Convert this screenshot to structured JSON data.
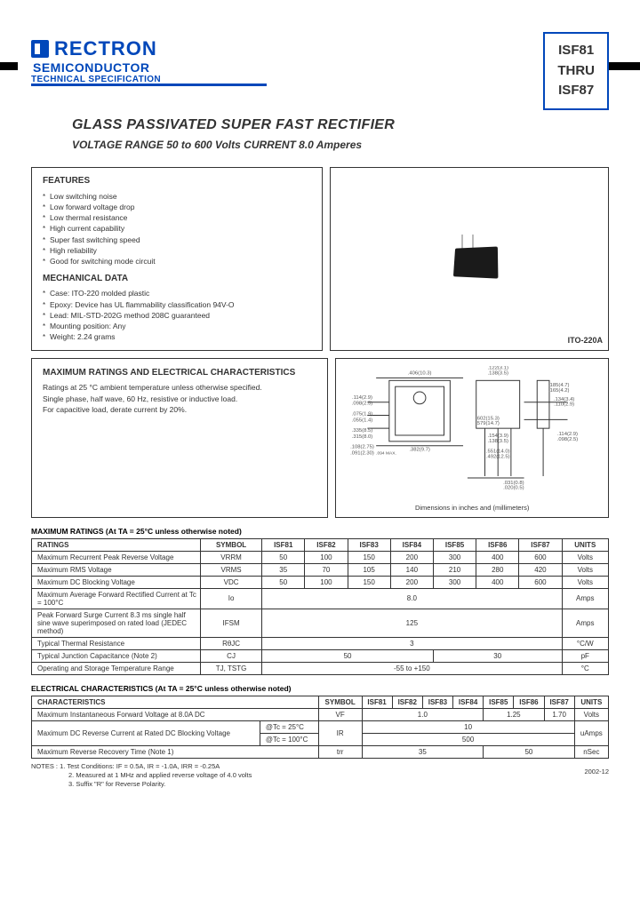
{
  "brand": {
    "name": "RECTRON",
    "sub": "SEMICONDUCTOR",
    "spec": "TECHNICAL SPECIFICATION"
  },
  "partbox": {
    "from": "ISF81",
    "mid": "THRU",
    "to": "ISF87"
  },
  "title": "GLASS PASSIVATED SUPER FAST RECTIFIER",
  "subtitle": "VOLTAGE RANGE  50 to 600 Volts   CURRENT 8.0 Amperes",
  "colors": {
    "brand_blue": "#0047BA",
    "text": "#333333",
    "border": "#333333",
    "page_bg": "#ffffff"
  },
  "features": {
    "heading": "FEATURES",
    "items": [
      "Low switching noise",
      "Low forward voltage drop",
      "Low thermal resistance",
      "High current capability",
      "Super fast switching speed",
      "High reliability",
      "Good for switching mode circuit"
    ]
  },
  "mechanical": {
    "heading": "MECHANICAL DATA",
    "items": [
      "Case: ITO-220 molded plastic",
      "Epoxy: Device has UL flammability classification 94V-O",
      "Lead: MIL-STD-202G method 208C guaranteed",
      "Mounting position: Any",
      "Weight: 2.24 grams"
    ]
  },
  "package_label": "ITO-220A",
  "drawing_caption": "Dimensions in inches and (millimeters)",
  "char_box": {
    "heading": "MAXIMUM RATINGS AND ELECTRICAL CHARACTERISTICS",
    "lines": [
      "Ratings at 25 °C ambient temperature unless otherwise specified.",
      "Single phase, half wave, 60 Hz, resistive or inductive load.",
      "For capacitive load, derate current by 20%."
    ]
  },
  "ratings_table": {
    "title": "MAXIMUM RATINGS (At TA = 25°C unless otherwise noted)",
    "headers": [
      "RATINGS",
      "SYMBOL",
      "ISF81",
      "ISF82",
      "ISF83",
      "ISF84",
      "ISF85",
      "ISF86",
      "ISF87",
      "UNITS"
    ],
    "rows": [
      {
        "label": "Maximum Recurrent Peak Reverse Voltage",
        "symbol": "VRRM",
        "vals": [
          "50",
          "100",
          "150",
          "200",
          "300",
          "400",
          "600"
        ],
        "unit": "Volts"
      },
      {
        "label": "Maximum RMS Voltage",
        "symbol": "VRMS",
        "vals": [
          "35",
          "70",
          "105",
          "140",
          "210",
          "280",
          "420"
        ],
        "unit": "Volts"
      },
      {
        "label": "Maximum DC Blocking Voltage",
        "symbol": "VDC",
        "vals": [
          "50",
          "100",
          "150",
          "200",
          "300",
          "400",
          "600"
        ],
        "unit": "Volts"
      },
      {
        "label": "Maximum Average Forward Rectified Current at Tc = 100°C",
        "symbol": "Io",
        "span": "8.0",
        "unit": "Amps"
      },
      {
        "label": "Peak Forward Surge Current 8.3 ms single half sine wave superimposed on rated load (JEDEC method)",
        "symbol": "IFSM",
        "span": "125",
        "unit": "Amps"
      },
      {
        "label": "Typical Thermal Resistance",
        "symbol": "RθJC",
        "span": "3",
        "unit": "°C/W"
      },
      {
        "label": "Typical Junction Capacitance (Note 2)",
        "symbol": "CJ",
        "half1": "50",
        "half2": "30",
        "unit": "pF"
      },
      {
        "label": "Operating and Storage Temperature Range",
        "symbol": "TJ, TSTG",
        "span": "-55 to +150",
        "unit": "°C"
      }
    ]
  },
  "elec_table": {
    "title": "ELECTRICAL CHARACTERISTICS (At TA = 25°C unless otherwise noted)",
    "headers": [
      "CHARACTERISTICS",
      "SYMBOL",
      "ISF81",
      "ISF82",
      "ISF83",
      "ISF84",
      "ISF85",
      "ISF86",
      "ISF87",
      "UNITS"
    ],
    "rows": {
      "vf": {
        "label": "Maximum Instantaneous Forward Voltage at 8.0A DC",
        "symbol": "VF",
        "v1": "1.0",
        "v2": "1.25",
        "v3": "1.70",
        "unit": "Volts"
      },
      "ir_label": "Maximum DC Reverse Current at Rated DC Blocking Voltage",
      "ir_cond1": "@Tc = 25°C",
      "ir_cond2": "@Tc = 100°C",
      "ir_symbol": "IR",
      "ir_v1": "10",
      "ir_v2": "500",
      "ir_unit": "uAmps",
      "trr": {
        "label": "Maximum Reverse Recovery Time (Note 1)",
        "symbol": "trr",
        "v1": "35",
        "v2": "50",
        "unit": "nSec"
      }
    }
  },
  "footnotes": {
    "label": "NOTES :",
    "n1": "1. Test Conditions: IF = 0.5A, IR = -1.0A, IRR = -0.25A",
    "n2": "2. Measured at 1 MHz and applied reverse voltage of 4.0 volts",
    "n3": "3. Suffix \"R\" for Reverse Polarity."
  },
  "date": "2002-12",
  "watermark": ""
}
